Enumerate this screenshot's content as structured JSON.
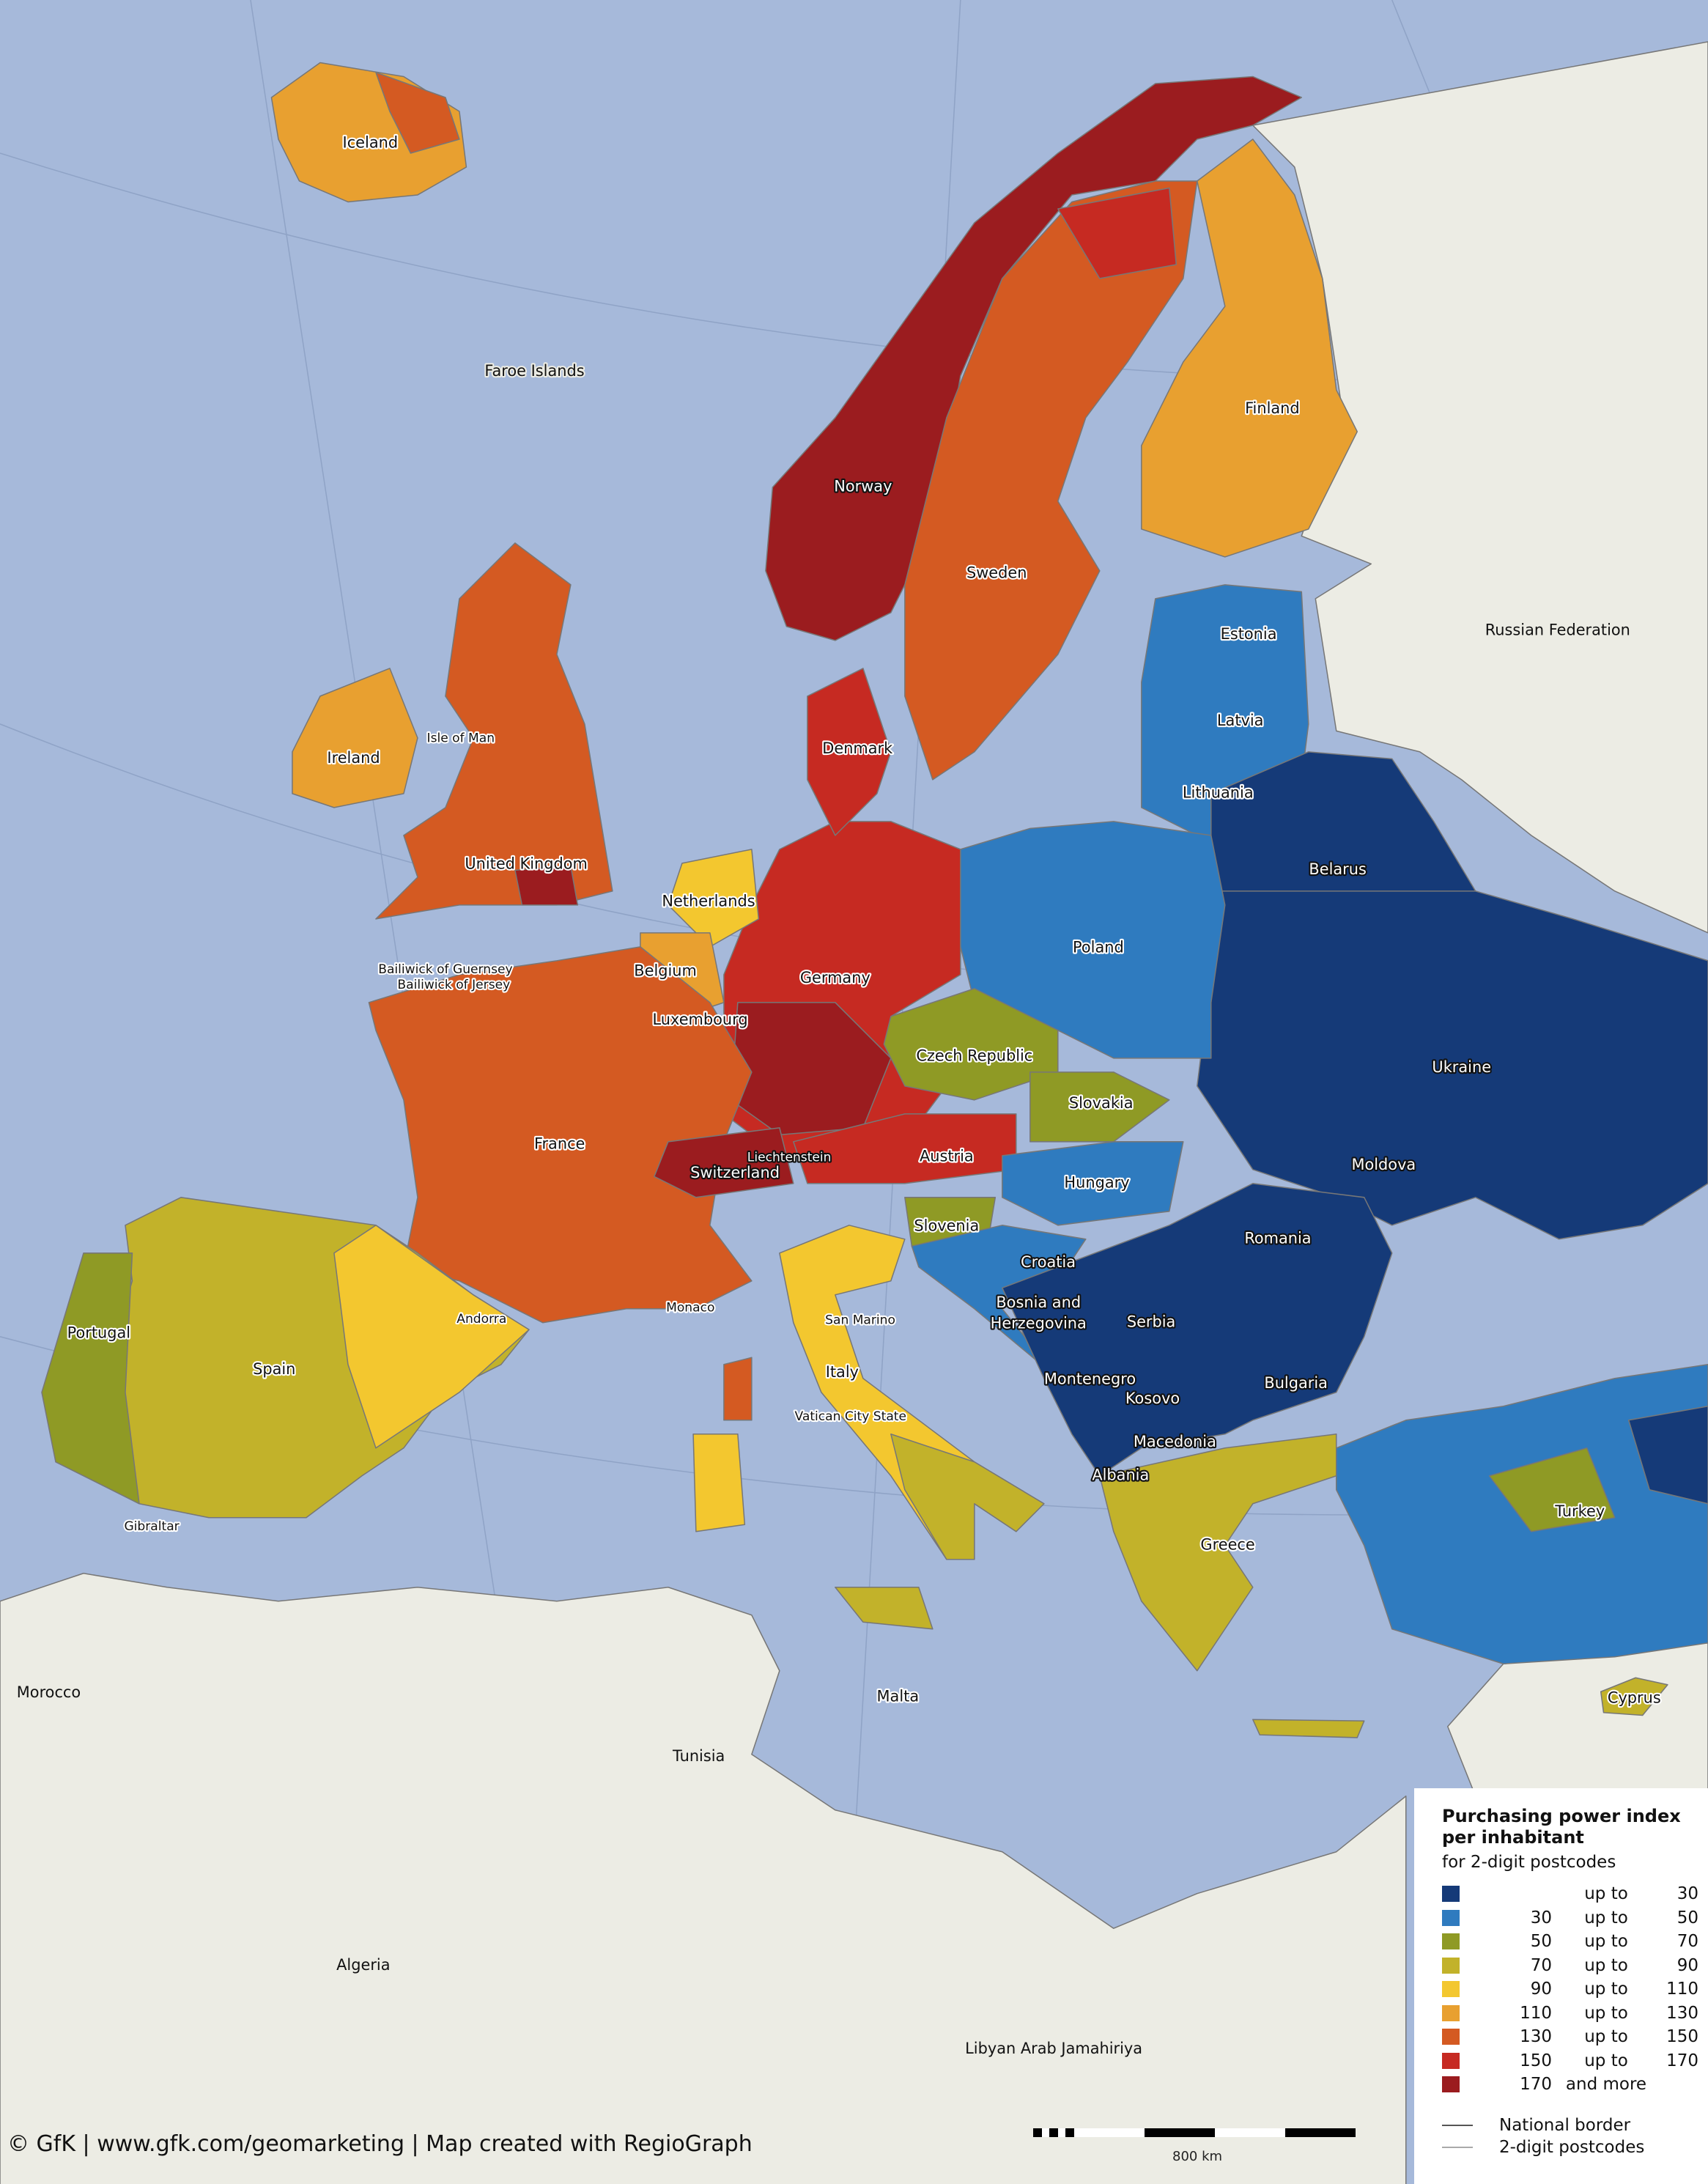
{
  "map": {
    "colors": {
      "sea": "#a6b9da",
      "non_covered_land": "#ecece4",
      "national_border": "#555555",
      "postcode_border": "#aaaaaa"
    },
    "country_labels": [
      "Iceland",
      "Faroe Islands",
      "Norway",
      "Sweden",
      "Finland",
      "Russian Federation",
      "Estonia",
      "Latvia",
      "Lithuania",
      "Denmark",
      "Isle of Man",
      "Ireland",
      "United Kingdom",
      "Netherlands",
      "Belarus",
      "Poland",
      "Germany",
      "Belgium",
      "Bailiwick of Guernsey",
      "Bailiwick of Jersey",
      "Luxembourg",
      "Czech Republic",
      "Ukraine",
      "Slovakia",
      "France",
      "Liechtenstein",
      "Austria",
      "Switzerland",
      "Moldova",
      "Hungary",
      "Slovenia",
      "Romania",
      "Croatia",
      "Bosnia and",
      "Herzegovina",
      "Serbia",
      "Andorra",
      "Monaco",
      "San Marino",
      "Portugal",
      "Spain",
      "Italy",
      "Montenegro",
      "Kosovo",
      "Bulgaria",
      "Vatican City State",
      "Macedonia",
      "Albania",
      "Turkey",
      "Gibraltar",
      "Greece",
      "Morocco",
      "Malta",
      "Cyprus",
      "Tunisia",
      "Algeria",
      "Libyan Arab Jamahiriya"
    ]
  },
  "legend": {
    "title_line1": "Purchasing power index",
    "title_line2": "per inhabitant",
    "subtitle": "for 2-digit postcodes",
    "classes": [
      {
        "from": "",
        "connector": "up to",
        "to": "30",
        "color": "#153a78"
      },
      {
        "from": "30",
        "connector": "up to",
        "to": "50",
        "color": "#2f7bbf"
      },
      {
        "from": "50",
        "connector": "up to",
        "to": "70",
        "color": "#8f9a25"
      },
      {
        "from": "70",
        "connector": "up to",
        "to": "90",
        "color": "#c2b22a"
      },
      {
        "from": "90",
        "connector": "up to",
        "to": "110",
        "color": "#f3c72f"
      },
      {
        "from": "110",
        "connector": "up to",
        "to": "130",
        "color": "#e8a030"
      },
      {
        "from": "130",
        "connector": "up to",
        "to": "150",
        "color": "#d45a22"
      },
      {
        "from": "150",
        "connector": "up to",
        "to": "170",
        "color": "#c62a22"
      },
      {
        "from": "170",
        "connector": "and more",
        "to": "",
        "color": "#9b1c1f"
      }
    ],
    "lines": [
      {
        "label": "National border"
      },
      {
        "label": "2-digit postcodes"
      }
    ]
  },
  "scale": {
    "label": "800 km"
  },
  "footer": {
    "credit": "© GfK | www.gfk.com/geomarketing | Map created with RegioGraph"
  }
}
